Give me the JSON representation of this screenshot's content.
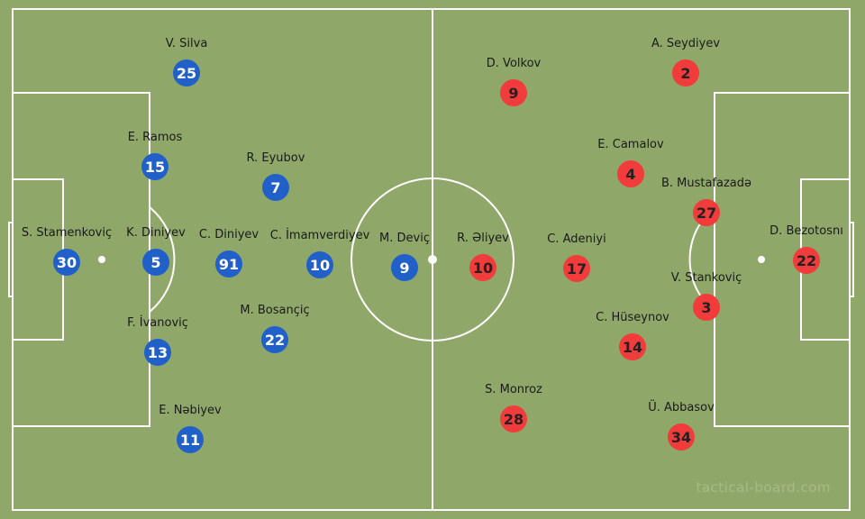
{
  "colors": {
    "pitch": "#8fa86a",
    "lines": "#ffffff",
    "home": "#2160c8",
    "away": "#f23b3b"
  },
  "watermark": "tactical-board.com",
  "home_team": [
    {
      "name": "S. Stamenkoviç",
      "number": "30"
    },
    {
      "name": "K. Diniyev",
      "number": "5"
    },
    {
      "name": "E. Ramos",
      "number": "15"
    },
    {
      "name": "F. İvanoviç",
      "number": "13"
    },
    {
      "name": "V. Silva",
      "number": "25"
    },
    {
      "name": "E. Nəbiyev",
      "number": "11"
    },
    {
      "name": "C. Diniyev",
      "number": "91"
    },
    {
      "name": "R. Eyubov",
      "number": "7"
    },
    {
      "name": "M. Bosançiç",
      "number": "22"
    },
    {
      "name": "C. İmamverdiyev",
      "number": "10"
    },
    {
      "name": "M. Deviç",
      "number": "9"
    }
  ],
  "away_team": [
    {
      "name": "D. Bezotosnı",
      "number": "22"
    },
    {
      "name": "B. Mustafazadə",
      "number": "27"
    },
    {
      "name": "V. Stankoviç",
      "number": "3"
    },
    {
      "name": "A. Seydiyev",
      "number": "2"
    },
    {
      "name": "Ü. Abbasov",
      "number": "34"
    },
    {
      "name": "E. Camalov",
      "number": "4"
    },
    {
      "name": "C. Hüseynov",
      "number": "14"
    },
    {
      "name": "C. Adeniyi",
      "number": "17"
    },
    {
      "name": "D. Volkov",
      "number": "9"
    },
    {
      "name": "S. Monroz",
      "number": "28"
    },
    {
      "name": "R. Əliyev",
      "number": "10"
    }
  ]
}
